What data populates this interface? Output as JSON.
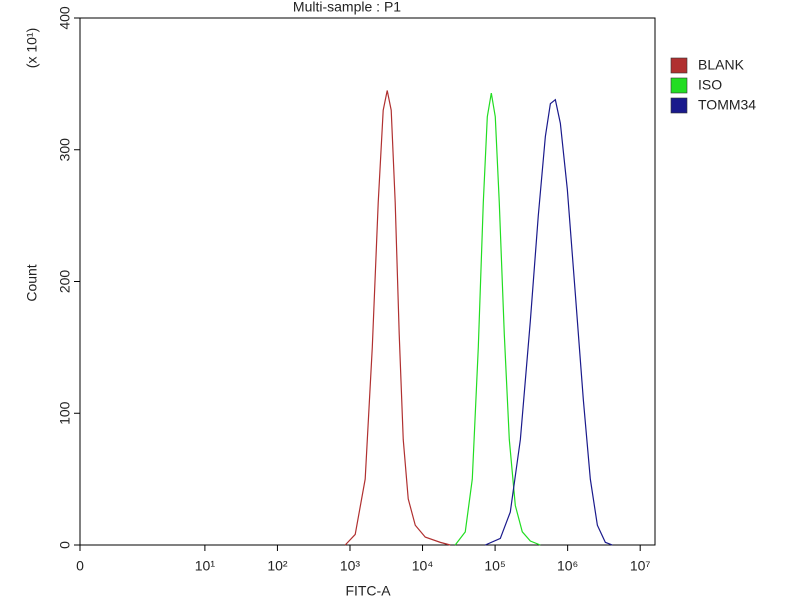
{
  "chart_data": {
    "type": "line",
    "title": "Multi-sample : P1",
    "x_label": "FITC-A",
    "y_label": "Count",
    "y_multiplier": "(x 10¹)",
    "xscale": "biexponential",
    "xlim": [
      0,
      16000000
    ],
    "ylim": [
      0,
      400
    ],
    "xticks": [
      0,
      {
        "value": 10,
        "label": "10¹"
      },
      {
        "value": 100,
        "label": "10²"
      },
      {
        "value": 1000,
        "label": "10³"
      },
      {
        "value": 10000,
        "label": "10⁴"
      },
      {
        "value": 100000,
        "label": "10⁵"
      },
      {
        "value": 1000000,
        "label": "10⁶"
      },
      {
        "value": 10000000,
        "label": "10⁷"
      }
    ],
    "yticks": [
      0,
      100,
      200,
      300,
      400
    ],
    "legend": "right",
    "series": [
      {
        "name": "BLANK",
        "color": "#b03030",
        "x": [
          860,
          1180,
          1620,
          2030,
          2450,
          2870,
          3260,
          3700,
          4200,
          4770,
          5420,
          6350,
          7940,
          10900,
          17600,
          24100
        ],
        "values": [
          0,
          8,
          50,
          150,
          260,
          330,
          345,
          330,
          260,
          160,
          80,
          35,
          15,
          6,
          2,
          0
        ]
      },
      {
        "name": "ISO",
        "color": "#22dd22",
        "x": [
          28200,
          38800,
          48500,
          58700,
          68800,
          78100,
          88700,
          100600,
          114200,
          133900,
          157000,
          190000,
          237000,
          306000,
          420000
        ],
        "values": [
          0,
          10,
          50,
          150,
          260,
          325,
          343,
          325,
          260,
          160,
          80,
          30,
          10,
          3,
          0
        ]
      },
      {
        "name": "TOMM34",
        "color": "#1a1a8c",
        "x": [
          73200,
          118000,
          162000,
          223000,
          306000,
          394000,
          493000,
          578000,
          677000,
          794000,
          990000,
          1279000,
          1647000,
          2055000,
          2569000,
          3310000,
          4138000
        ],
        "values": [
          0,
          5,
          25,
          80,
          170,
          250,
          310,
          335,
          338,
          320,
          270,
          190,
          110,
          50,
          15,
          2,
          0
        ]
      }
    ]
  }
}
